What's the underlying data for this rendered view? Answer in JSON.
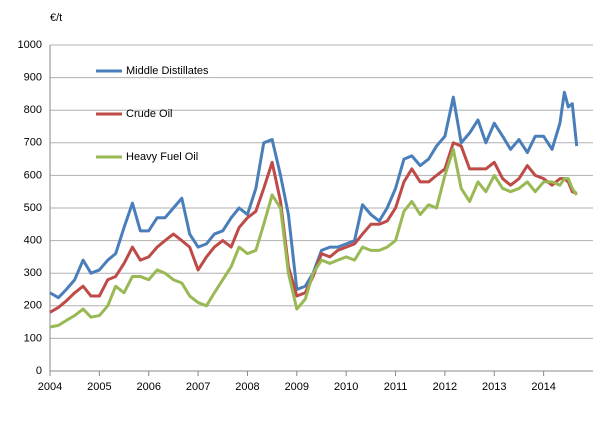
{
  "chart_data": {
    "type": "line",
    "y_label": "€/t",
    "x": [
      2004.0,
      2004.17,
      2004.33,
      2004.5,
      2004.67,
      2004.83,
      2005.0,
      2005.17,
      2005.33,
      2005.5,
      2005.67,
      2005.83,
      2006.0,
      2006.17,
      2006.33,
      2006.5,
      2006.67,
      2006.83,
      2007.0,
      2007.17,
      2007.33,
      2007.5,
      2007.67,
      2007.83,
      2008.0,
      2008.17,
      2008.33,
      2008.5,
      2008.67,
      2008.83,
      2009.0,
      2009.17,
      2009.33,
      2009.5,
      2009.67,
      2009.83,
      2010.0,
      2010.17,
      2010.33,
      2010.5,
      2010.67,
      2010.83,
      2011.0,
      2011.17,
      2011.33,
      2011.5,
      2011.67,
      2011.83,
      2012.0,
      2012.17,
      2012.33,
      2012.5,
      2012.67,
      2012.83,
      2013.0,
      2013.17,
      2013.33,
      2013.5,
      2013.67,
      2013.83,
      2014.0,
      2014.17,
      2014.33,
      2014.42,
      2014.5,
      2014.58,
      2014.67
    ],
    "series": [
      {
        "name": "Middle Distillates",
        "color": "#4a7ebb",
        "values": [
          240,
          225,
          250,
          280,
          340,
          300,
          310,
          340,
          360,
          440,
          515,
          430,
          430,
          470,
          470,
          500,
          530,
          420,
          380,
          390,
          420,
          430,
          470,
          500,
          480,
          560,
          700,
          710,
          600,
          480,
          250,
          260,
          300,
          370,
          380,
          380,
          390,
          400,
          510,
          480,
          460,
          500,
          560,
          650,
          660,
          630,
          650,
          690,
          720,
          840,
          700,
          730,
          770,
          700,
          760,
          720,
          680,
          710,
          670,
          720,
          720,
          680,
          760,
          855,
          810,
          820,
          690
        ]
      },
      {
        "name": "Crude Oil",
        "color": "#be4b48",
        "values": [
          180,
          195,
          215,
          240,
          260,
          230,
          230,
          280,
          290,
          330,
          380,
          340,
          350,
          380,
          400,
          420,
          400,
          380,
          310,
          350,
          380,
          400,
          380,
          440,
          470,
          490,
          560,
          640,
          520,
          320,
          230,
          240,
          290,
          360,
          350,
          370,
          380,
          390,
          420,
          450,
          450,
          460,
          500,
          580,
          620,
          580,
          580,
          600,
          620,
          700,
          690,
          620,
          620,
          620,
          640,
          590,
          570,
          590,
          630,
          600,
          590,
          570,
          590,
          590,
          580,
          550,
          545
        ]
      },
      {
        "name": "Heavy Fuel Oil",
        "color": "#98b954",
        "values": [
          135,
          140,
          155,
          170,
          190,
          165,
          170,
          200,
          260,
          240,
          290,
          290,
          280,
          310,
          300,
          280,
          270,
          230,
          210,
          200,
          240,
          280,
          320,
          380,
          360,
          370,
          450,
          540,
          500,
          300,
          190,
          220,
          300,
          340,
          330,
          340,
          350,
          340,
          380,
          370,
          370,
          380,
          400,
          490,
          520,
          480,
          510,
          500,
          600,
          680,
          560,
          520,
          580,
          550,
          600,
          560,
          550,
          560,
          580,
          550,
          580,
          580,
          570,
          590,
          590,
          560,
          540
        ]
      }
    ],
    "xlim": [
      2004,
      2015
    ],
    "xticks": [
      2004,
      2005,
      2006,
      2007,
      2008,
      2009,
      2010,
      2011,
      2012,
      2013,
      2014
    ],
    "ylim": [
      0,
      1000
    ],
    "yticks": [
      0,
      100,
      200,
      300,
      400,
      500,
      600,
      700,
      800,
      900,
      1000
    ],
    "grid": true,
    "legend": "upper left"
  }
}
